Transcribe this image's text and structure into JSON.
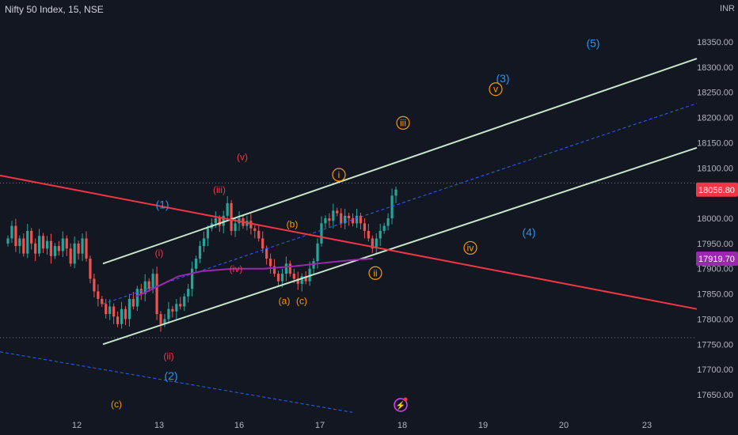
{
  "header": {
    "symbol_line": "Nifty 50 Index, 15, NSE",
    "currency": "INR"
  },
  "colors": {
    "background": "#131722",
    "up": "#26a69a",
    "down": "#ef5350",
    "channel": "#c8e6c9",
    "red_line": "#f23645",
    "dashed_blue": "#2962ff",
    "ma": "#9c27b0",
    "wave_red": "#f23645",
    "wave_orange": "#ff9800",
    "wave_blue": "#2196f3"
  },
  "price_badges": {
    "last": "18056.80",
    "ma": "17919.70"
  },
  "chart_data": {
    "type": "candlestick",
    "title": "Nifty 50 Index, 15, NSE",
    "x_ticks": [
      "12",
      "13",
      "16",
      "17",
      "18",
      "19",
      "20",
      "23"
    ],
    "y_ticks": [
      17650,
      17700,
      17750,
      17800,
      17850,
      17900,
      17950,
      18000,
      18050,
      18100,
      18150,
      18200,
      18250,
      18300,
      18350
    ],
    "ylim": [
      17615,
      18405
    ],
    "y_axis_label": "INR",
    "grid": false,
    "horizontal_levels": [
      18070,
      17763
    ],
    "candles_close": [
      17960,
      17985,
      17945,
      17960,
      17930,
      17975,
      17950,
      17930,
      17965,
      17940,
      17955,
      17925,
      17945,
      17935,
      17960,
      17940,
      17910,
      17950,
      17930,
      17960,
      17920,
      17880,
      17855,
      17840,
      17830,
      17810,
      17825,
      17805,
      17790,
      17820,
      17800,
      17840,
      17825,
      17860,
      17850,
      17875,
      17860,
      17890,
      17810,
      17790,
      17800,
      17820,
      17815,
      17830,
      17825,
      17845,
      17860,
      17900,
      17920,
      17945,
      17960,
      17980,
      17990,
      18000,
      17985,
      18005,
      18030,
      17975,
      17990,
      18000,
      17985,
      17995,
      17980,
      17975,
      17960,
      17940,
      17920,
      17905,
      17890,
      17875,
      17890,
      17910,
      17890,
      17880,
      17870,
      17885,
      17875,
      17900,
      17915,
      17950,
      17990,
      18000,
      17995,
      18015,
      18010,
      17990,
      18005,
      18000,
      17990,
      18005,
      17990,
      17975,
      17960,
      17940,
      17960,
      17975,
      17985,
      18000,
      18045,
      18057
    ],
    "moving_average": [
      [
        0.33,
        17845
      ],
      [
        0.36,
        17855
      ],
      [
        0.4,
        17870
      ],
      [
        0.44,
        17885
      ],
      [
        0.5,
        17895
      ],
      [
        0.58,
        17900
      ],
      [
        0.66,
        17900
      ],
      [
        0.74,
        17905
      ],
      [
        0.82,
        17912
      ],
      [
        0.86,
        17915
      ],
      [
        0.9,
        17918
      ],
      [
        0.94,
        17920
      ]
    ],
    "trendlines": [
      {
        "name": "channel-top",
        "from": [
          "12.3",
          17910
        ],
        "to": [
          "23.6",
          18317
        ]
      },
      {
        "name": "channel-bottom",
        "from": [
          "12.3",
          17750
        ],
        "to": [
          "23.6",
          18140
        ]
      },
      {
        "name": "channel-mid",
        "from": [
          "12.3",
          17830
        ],
        "to": [
          "23.6",
          18228
        ]
      },
      {
        "name": "red-trendline",
        "from": [
          "11.2",
          18085
        ],
        "to": [
          "23.6",
          17820
        ]
      },
      {
        "name": "lower-dashed",
        "from": [
          "11.2",
          17735
        ],
        "to": [
          "17.4",
          17615
        ]
      }
    ],
    "annotations": [
      {
        "text": "(v)",
        "x": "16.05",
        "y": 18115,
        "color": "wave_red"
      },
      {
        "text": "(iii)",
        "x": "15.75",
        "y": 18050,
        "color": "wave_red"
      },
      {
        "text": "(i)",
        "x": "13.0",
        "y": 17925,
        "color": "wave_red"
      },
      {
        "text": "(ii)",
        "x": "13.12",
        "y": 17720,
        "color": "wave_red"
      },
      {
        "text": "(iv)",
        "x": "15.95",
        "y": 17893,
        "color": "wave_red"
      },
      {
        "text": "(1)",
        "x": "13.05",
        "y": 18020,
        "color": "wave_blue"
      },
      {
        "text": "(2)",
        "x": "13.15",
        "y": 17680,
        "color": "wave_blue"
      },
      {
        "text": "(3)",
        "x": "19.25",
        "y": 18270,
        "color": "wave_blue"
      },
      {
        "text": "(4)",
        "x": "19.6",
        "y": 17965,
        "color": "wave_blue"
      },
      {
        "text": "(5)",
        "x": "20.4",
        "y": 18340,
        "color": "wave_blue"
      },
      {
        "text": "(b)",
        "x": "16.65",
        "y": 17982,
        "color": "wave_orange"
      },
      {
        "text": "(a)",
        "x": "16.55",
        "y": 17830,
        "color": "wave_orange"
      },
      {
        "text": "(c)",
        "x": "16.8",
        "y": 17830,
        "color": "wave_orange"
      },
      {
        "text": "(c)",
        "x": "12.45",
        "y": 17625,
        "color": "wave_orange"
      },
      {
        "text": "i",
        "x": "17.25",
        "y": 18080,
        "color": "wave_orange",
        "circled": true
      },
      {
        "text": "ii",
        "x": "17.7",
        "y": 17885,
        "color": "wave_orange",
        "circled": true
      },
      {
        "text": "iii",
        "x": "18.0",
        "y": 18183,
        "color": "wave_orange",
        "circled": true
      },
      {
        "text": "iv",
        "x": "18.85",
        "y": 17935,
        "color": "wave_orange",
        "circled": true
      },
      {
        "text": "v",
        "x": "19.15",
        "y": 18250,
        "color": "wave_orange",
        "circled": true
      }
    ]
  }
}
